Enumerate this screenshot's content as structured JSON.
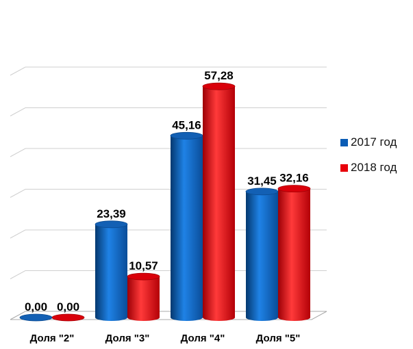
{
  "chart_data": {
    "type": "bar",
    "style": "3d-cylinder",
    "categories": [
      "Доля \"2\"",
      "Доля \"3\"",
      "Доля \"4\"",
      "Доля \"5\""
    ],
    "series": [
      {
        "name": "2017 год",
        "color": "#0a5cb5",
        "values": [
          0.0,
          23.39,
          45.16,
          31.45
        ],
        "labels": [
          "0,00",
          "23,39",
          "45,16",
          "31,45"
        ]
      },
      {
        "name": "2018 год",
        "color": "#e8000b",
        "values": [
          0.0,
          10.57,
          57.28,
          32.16
        ],
        "labels": [
          "0,00",
          "10,57",
          "57,28",
          "32,16"
        ]
      }
    ],
    "ylim": [
      0,
      60
    ],
    "grid": true,
    "legend_position": "right",
    "title": "",
    "xlabel": "",
    "ylabel": ""
  }
}
